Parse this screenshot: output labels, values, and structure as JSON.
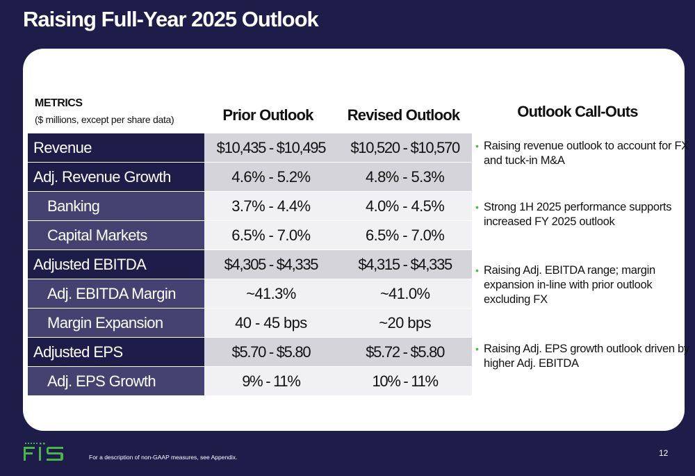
{
  "title": "Raising Full-Year 2025 Outlook",
  "table": {
    "metrics_label": "METRICS",
    "metrics_sublabel": "($ millions, except per share data)",
    "col_prior": "Prior Outlook",
    "col_revised": "Revised Outlook",
    "rows": [
      {
        "label": "Revenue",
        "prior": "$10,435 - $10,495",
        "revised": "$10,520 - $10,570"
      },
      {
        "label": "Adj. Revenue Growth",
        "prior": "4.6% - 5.2%",
        "revised": "4.8% - 5.3%"
      },
      {
        "label": "Banking",
        "prior": "3.7% - 4.4%",
        "revised": "4.0% - 4.5%"
      },
      {
        "label": "Capital Markets",
        "prior": "6.5% - 7.0%",
        "revised": "6.5% - 7.0%"
      },
      {
        "label": "Adjusted EBITDA",
        "prior": "$4,305 - $4,335",
        "revised": "$4,315 - $4,335"
      },
      {
        "label": "Adj. EBITDA Margin",
        "prior": "~41.3%",
        "revised": "~41.0%"
      },
      {
        "label": "Margin Expansion",
        "prior": "40 - 45 bps",
        "revised": "~20 bps"
      },
      {
        "label": "Adjusted EPS",
        "prior": "$5.70 - $5.80",
        "revised": "$5.72 - $5.80"
      },
      {
        "label": "Adj. EPS Growth",
        "prior": "9% - 11%",
        "revised": "10% - 11%"
      }
    ]
  },
  "callouts": {
    "heading": "Outlook Call-Outs",
    "bullet": "•",
    "items": [
      "Raising revenue outlook to account for FX and tuck-in M&A",
      "Strong 1H 2025 performance supports increased FY 2025 outlook",
      "Raising Adj. EBITDA range; margin expansion in-line with prior outlook excluding FX",
      "Raising Adj. EPS growth outlook driven by higher Adj. EBITDA"
    ]
  },
  "footer": {
    "logo_text": "FIS",
    "footnote": "For a description of non-GAAP measures, see Appendix.",
    "page_number": "12"
  },
  "colors": {
    "navy": "#1e1d4a",
    "sub_row": "#454271",
    "brand_green": "#48b64b"
  }
}
